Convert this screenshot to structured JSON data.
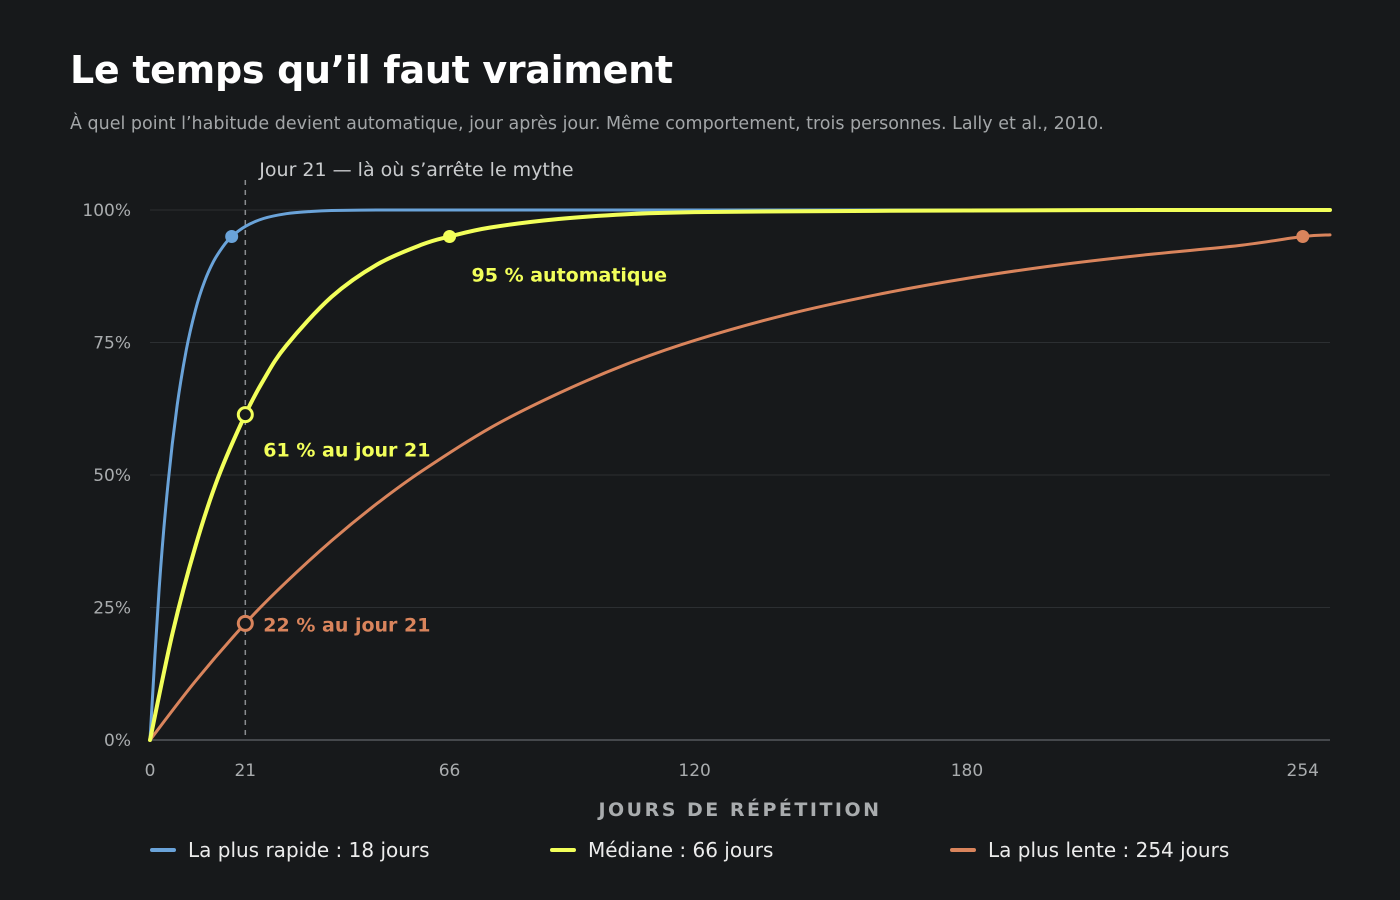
{
  "title": "Le temps qu’il faut vraiment",
  "subtitle": "À quel point l’habitude devient automatique, jour après jour. Même comportement, trois personnes. Lally et al., 2010.",
  "colors": {
    "background": "#17191b",
    "fast": "#6aa3d9",
    "median": "#f2ff5a",
    "slow": "#d9845c",
    "grid": "#2c2f32",
    "axis": "#55595c"
  },
  "chart_data": {
    "type": "line",
    "title": "Le temps qu’il faut vraiment",
    "xlabel": "JOURS DE RÉPÉTITION",
    "ylabel": "",
    "xlim": [
      0,
      260
    ],
    "ylim": [
      0,
      100
    ],
    "x_ticks": [
      0,
      21,
      66,
      120,
      180,
      254
    ],
    "y_ticks": [
      {
        "value": 0,
        "label": "0%"
      },
      {
        "value": 25,
        "label": "25%"
      },
      {
        "value": 50,
        "label": "50%"
      },
      {
        "value": 75,
        "label": "75%"
      },
      {
        "value": 100,
        "label": "100%"
      }
    ],
    "grid": true,
    "legend_position": "bottom",
    "series": [
      {
        "key": "fast",
        "name": "La plus rapide : 18 jours",
        "color": "#6aa3d9",
        "x": [
          0,
          2,
          4,
          6,
          8,
          10,
          12,
          14,
          16,
          18,
          21,
          25,
          30,
          35,
          40,
          50,
          60,
          80,
          120,
          180,
          260
        ],
        "y": [
          0,
          28.4,
          48.7,
          63.2,
          73.6,
          81.1,
          86.5,
          90.3,
          93.0,
          95.0,
          96.9,
          98.4,
          99.3,
          99.7,
          99.9,
          100,
          100,
          100,
          100,
          100,
          100
        ]
      },
      {
        "key": "median",
        "name": "Médiane : 66 jours",
        "color": "#f2ff5a",
        "x": [
          0,
          5,
          10,
          15,
          21,
          25,
          30,
          40,
          50,
          60,
          66,
          75,
          90,
          105,
          120,
          150,
          180,
          220,
          260
        ],
        "y": [
          0,
          20.3,
          36.5,
          49.5,
          61.4,
          67.9,
          74.4,
          83.6,
          89.7,
          93.5,
          95.0,
          96.7,
          98.3,
          99.2,
          99.6,
          99.8,
          99.9,
          100,
          100
        ]
      },
      {
        "key": "slow",
        "name": "La plus lente : 254 jours",
        "color": "#d9845c",
        "x": [
          0,
          10,
          21,
          30,
          40,
          50,
          60,
          75,
          90,
          105,
          120,
          140,
          160,
          180,
          200,
          220,
          240,
          254,
          260
        ],
        "y": [
          0,
          11.1,
          22.0,
          29.8,
          37.6,
          44.6,
          50.8,
          58.9,
          65.4,
          70.9,
          75.4,
          80.2,
          84.0,
          87.1,
          89.6,
          91.6,
          93.3,
          95.0,
          95.3
        ]
      }
    ],
    "markers": [
      {
        "series": "fast",
        "x": 18,
        "y": 95,
        "style": "filled"
      },
      {
        "series": "median",
        "x": 66,
        "y": 95,
        "style": "filled"
      },
      {
        "series": "slow",
        "x": 254,
        "y": 95,
        "style": "filled"
      },
      {
        "series": "median",
        "x": 21,
        "y": 61.4,
        "style": "hollow"
      },
      {
        "series": "slow",
        "x": 21,
        "y": 22,
        "style": "hollow"
      }
    ],
    "reference_line": {
      "x": 21,
      "label": "Jour 21 — là où s’arrête le mythe"
    },
    "annotations": [
      {
        "series": "median",
        "text": "95 % automatique",
        "x": 66,
        "y": 95
      },
      {
        "series": "median",
        "text": "61 % au jour 21",
        "x": 21,
        "y": 61.4
      },
      {
        "series": "slow",
        "text": "22 % au jour 21",
        "x": 21,
        "y": 22
      }
    ]
  },
  "legend": [
    {
      "key": "fast",
      "label": "La plus rapide : 18 jours",
      "color": "#6aa3d9"
    },
    {
      "key": "median",
      "label": "Médiane : 66 jours",
      "color": "#f2ff5a"
    },
    {
      "key": "slow",
      "label": "La plus lente : 254 jours",
      "color": "#d9845c"
    }
  ]
}
